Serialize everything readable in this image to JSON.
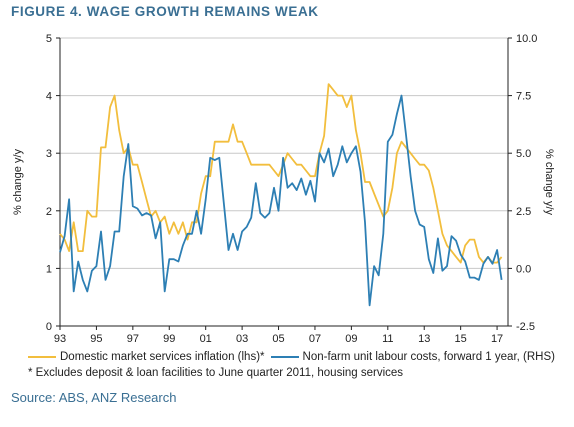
{
  "title": "FIGURE 4. WAGE GROWTH REMAINS WEAK",
  "colors": {
    "domestic": "#f2be3d",
    "nonfarm": "#2d7fb4",
    "title": "#3a6f93",
    "grid": "#c8c8c8"
  },
  "legend": {
    "domestic_label": "Domestic market services inflation (lhs)*",
    "nonfarm_label": "Non-farm unit labour costs, forward 1 year, (RHS)"
  },
  "footnote": "* Excludes deposit & loan facilities to June quarter 2011, housing services",
  "source": "Source: ABS, ANZ Research",
  "chart_data": {
    "type": "line",
    "ylabel_left": "% change y/y",
    "ylabel_right": "% change y/y",
    "xlim": [
      1993,
      2017.6
    ],
    "ylim_left": [
      0,
      5
    ],
    "ylim_right": [
      -2.5,
      10
    ],
    "xticks": [
      1993,
      1995,
      1997,
      1999,
      2001,
      2003,
      2005,
      2007,
      2009,
      2011,
      2013,
      2015,
      2017
    ],
    "xtick_labels": [
      "93",
      "95",
      "97",
      "99",
      "01",
      "03",
      "05",
      "07",
      "09",
      "11",
      "13",
      "15",
      "17"
    ],
    "yticks_left": [
      "0",
      "1",
      "2",
      "3",
      "4",
      "5"
    ],
    "yticks_right": [
      "-2.5",
      "0.0",
      "2.5",
      "5.0",
      "7.5",
      "10.0"
    ],
    "ytick_values_left": [
      0,
      1,
      2,
      3,
      4,
      5
    ],
    "ytick_values_right": [
      -2.5,
      0,
      2.5,
      5,
      7.5,
      10
    ],
    "grid": "horizontal",
    "series": [
      {
        "name": "Domestic market services inflation (lhs)*",
        "axis": "left",
        "x": [
          1993.0,
          1993.25,
          1993.5,
          1993.75,
          1994.0,
          1994.25,
          1994.5,
          1994.75,
          1995.0,
          1995.25,
          1995.5,
          1995.75,
          1996.0,
          1996.25,
          1996.5,
          1996.75,
          1997.0,
          1997.25,
          1997.5,
          1997.75,
          1998.0,
          1998.25,
          1998.5,
          1998.75,
          1999.0,
          1999.25,
          1999.5,
          1999.75,
          2000.0,
          2000.25,
          2000.5,
          2000.75,
          2001.0,
          2001.25,
          2001.5,
          2001.75,
          2002.0,
          2002.25,
          2002.5,
          2002.75,
          2003.0,
          2003.25,
          2003.5,
          2003.75,
          2004.0,
          2004.25,
          2004.5,
          2004.75,
          2005.0,
          2005.25,
          2005.5,
          2005.75,
          2006.0,
          2006.25,
          2006.5,
          2006.75,
          2007.0,
          2007.25,
          2007.5,
          2007.75,
          2008.0,
          2008.25,
          2008.5,
          2008.75,
          2009.0,
          2009.25,
          2009.5,
          2009.75,
          2010.0,
          2010.25,
          2010.5,
          2010.75,
          2011.0,
          2011.25,
          2011.5,
          2011.75,
          2012.0,
          2012.25,
          2012.5,
          2012.75,
          2013.0,
          2013.25,
          2013.5,
          2013.75,
          2014.0,
          2014.25,
          2014.5,
          2014.75,
          2015.0,
          2015.25,
          2015.5,
          2015.75,
          2016.0,
          2016.25,
          2016.5,
          2016.75,
          2017.0,
          2017.25
        ],
        "y": [
          1.6,
          1.5,
          1.3,
          1.8,
          1.3,
          1.3,
          2.0,
          1.9,
          1.9,
          3.1,
          3.1,
          3.8,
          4.0,
          3.4,
          3.0,
          3.1,
          2.8,
          2.8,
          2.5,
          2.2,
          1.9,
          2.0,
          1.8,
          1.9,
          1.6,
          1.8,
          1.6,
          1.8,
          1.5,
          1.8,
          1.8,
          2.3,
          2.6,
          2.6,
          3.2,
          3.2,
          3.2,
          3.2,
          3.5,
          3.2,
          3.2,
          3.0,
          2.8,
          2.8,
          2.8,
          2.8,
          2.8,
          2.7,
          2.6,
          2.8,
          3.0,
          2.9,
          2.8,
          2.8,
          2.7,
          2.6,
          2.6,
          3.0,
          3.3,
          4.2,
          4.1,
          4.0,
          4.0,
          3.8,
          4.0,
          3.4,
          3.0,
          2.5,
          2.5,
          2.3,
          2.1,
          1.9,
          2.0,
          2.4,
          3.0,
          3.2,
          3.1,
          3.0,
          2.9,
          2.8,
          2.8,
          2.7,
          2.4,
          2.0,
          1.6,
          1.4,
          1.3,
          1.2,
          1.1,
          1.4,
          1.5,
          1.5,
          1.2,
          1.1,
          1.2,
          1.1,
          1.1,
          1.2
        ]
      },
      {
        "name": "Non-farm unit labour costs, forward 1 year, (RHS)",
        "axis": "right",
        "x": [
          1993.0,
          1993.25,
          1993.5,
          1993.75,
          1994.0,
          1994.25,
          1994.5,
          1994.75,
          1995.0,
          1995.25,
          1995.5,
          1995.75,
          1996.0,
          1996.25,
          1996.5,
          1996.75,
          1997.0,
          1997.25,
          1997.5,
          1997.75,
          1998.0,
          1998.25,
          1998.5,
          1998.75,
          1999.0,
          1999.25,
          1999.5,
          1999.75,
          2000.0,
          2000.25,
          2000.5,
          2000.75,
          2001.0,
          2001.25,
          2001.5,
          2001.75,
          2002.0,
          2002.25,
          2002.5,
          2002.75,
          2003.0,
          2003.25,
          2003.5,
          2003.75,
          2004.0,
          2004.25,
          2004.5,
          2004.75,
          2005.0,
          2005.25,
          2005.5,
          2005.75,
          2006.0,
          2006.25,
          2006.5,
          2006.75,
          2007.0,
          2007.25,
          2007.5,
          2007.75,
          2008.0,
          2008.25,
          2008.5,
          2008.75,
          2009.0,
          2009.25,
          2009.5,
          2009.75,
          2010.0,
          2010.25,
          2010.5,
          2010.75,
          2011.0,
          2011.25,
          2011.5,
          2011.75,
          2012.0,
          2012.25,
          2012.5,
          2012.75,
          2013.0,
          2013.25,
          2013.5,
          2013.75,
          2014.0,
          2014.25,
          2014.5,
          2014.75,
          2015.0,
          2015.25,
          2015.5,
          2015.75,
          2016.0,
          2016.25,
          2016.5,
          2016.75,
          2017.0,
          2017.25
        ],
        "y": [
          0.7,
          1.4,
          3.0,
          -1.0,
          0.3,
          -0.5,
          -1.0,
          -0.1,
          0.1,
          1.6,
          -0.5,
          0.1,
          1.6,
          1.6,
          4.0,
          5.4,
          2.7,
          2.6,
          2.3,
          2.4,
          2.3,
          1.3,
          2.0,
          -1.0,
          0.4,
          0.4,
          0.3,
          1.0,
          1.5,
          1.5,
          2.5,
          1.5,
          3.0,
          4.8,
          4.7,
          4.8,
          2.8,
          0.8,
          1.5,
          0.8,
          1.6,
          1.8,
          2.2,
          3.7,
          2.4,
          2.2,
          2.4,
          3.5,
          2.5,
          4.8,
          3.5,
          3.7,
          3.4,
          3.9,
          3.2,
          3.8,
          2.9,
          5.0,
          4.6,
          5.2,
          4.0,
          4.5,
          5.3,
          4.6,
          5.0,
          5.3,
          4.2,
          2.0,
          -1.6,
          0.1,
          -0.3,
          1.5,
          5.5,
          5.8,
          6.7,
          7.5,
          5.8,
          4.0,
          2.5,
          1.9,
          1.8,
          0.4,
          -0.2,
          1.3,
          -0.1,
          0.1,
          1.4,
          1.2,
          0.6,
          0.3,
          -0.4,
          -0.4,
          -0.5,
          0.2,
          0.5,
          0.2,
          0.8,
          -0.5
        ]
      }
    ]
  }
}
